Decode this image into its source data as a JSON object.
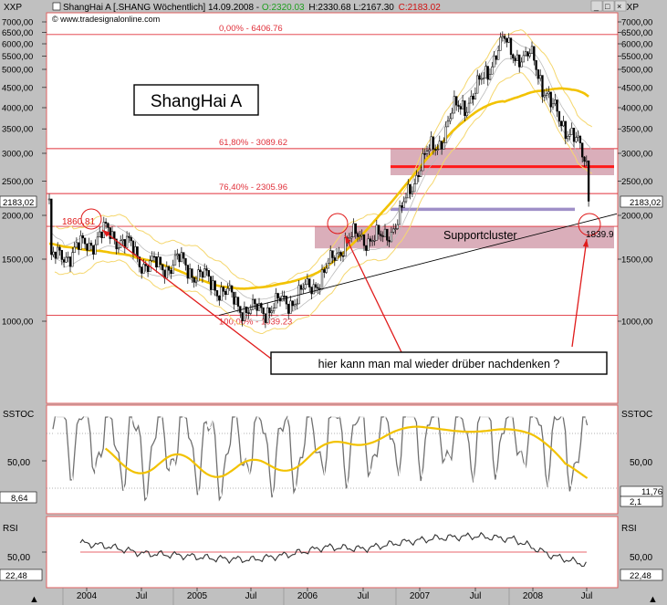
{
  "header": {
    "symbol_left": "XXP",
    "symbol_right": "XXP",
    "title": "ShangHai A [.SHANG  Wöchentlich] 14.09.2008 -",
    "open": "O:2320.03",
    "high_low": "H:2330.68 L:2167.30",
    "close": "C:2183.02",
    "close_label": "2183,02",
    "copyright": "© www.tradesignalonline.com",
    "window_buttons": [
      "_",
      "□",
      "×"
    ]
  },
  "price_panel": {
    "chart_title": "ShangHai A",
    "y_ticks_left": [
      "7000,00",
      "6500,00",
      "6000,00",
      "5500,00",
      "5000,00",
      "4500,00",
      "4000,00",
      "3500,00",
      "3000,00",
      "2500,00",
      "2000,00",
      "1500,00",
      "1000,00"
    ],
    "y_ticks_right": [
      "7000,00",
      "6500,00",
      "6000,00",
      "5500,00",
      "5000,00",
      "4500,00",
      "4000,00",
      "3500,00",
      "3000,00",
      "2500,00",
      "2000,00",
      "1500,00",
      "1000,00"
    ],
    "y_values": [
      7000,
      6500,
      6000,
      5500,
      5000,
      4500,
      4000,
      3500,
      3000,
      2500,
      2000,
      1500,
      1000
    ],
    "fib_levels": [
      {
        "label": "0,00% - 6406.76",
        "value": 6406.76
      },
      {
        "label": "61,80% - 3089.62",
        "value": 3089.62
      },
      {
        "label": "76,40% - 2305.96",
        "value": 2305.96
      },
      {
        "label": "100,00% - 1039.23",
        "value": 1039.23
      }
    ],
    "support_line_value": 1860.81,
    "resistance_value": 2750,
    "purple_line_value": 2080,
    "support_zone_top": 1860.81,
    "support_zone_bottom": 1610,
    "upper_zone_top": 3089.62,
    "upper_zone_bottom": 2600,
    "labels": {
      "high_2004": "1860.81",
      "low_target": "1839.9",
      "supportcluster": "Supportcluster",
      "comment": "hier kann man mal wieder drüber nachdenken ?"
    },
    "trendline": {
      "start_value": 1039.23,
      "end_value": 1880
    }
  },
  "x_axis": {
    "labels": [
      "2004",
      "Jul",
      "2005",
      "Jul",
      "2006",
      "Jul",
      "2007",
      "Jul",
      "2008",
      "Jul"
    ]
  },
  "stoch_panel": {
    "name": "SSTOC",
    "y_ticks_left": [
      "50,00"
    ],
    "y_ticks_right": [
      "50,00"
    ],
    "left_value": "8,64",
    "right_values": [
      "11,76",
      "2,1"
    ],
    "levels": [
      80,
      20
    ]
  },
  "rsi_panel": {
    "name": "RSI",
    "y_ticks_left": [
      "50,00"
    ],
    "y_ticks_right": [
      "50,00"
    ],
    "left_value": "22,48",
    "right_value": "22,48",
    "level": 50
  },
  "colors": {
    "background": "#ffffff",
    "frame": "#c0c0c0",
    "fib_line": "#e0303a",
    "zone": "#d4a0ae",
    "resistance": "#ff1a1a",
    "purple": "#9f8fc8",
    "ma_yellow": "#f2c200",
    "band_yellow": "#f5d76e",
    "band_white": "#ffffff",
    "stoch_grey": "#707070",
    "rsi_line": "#333333",
    "arrow": "#e01b1b",
    "comment_border": "#000000"
  },
  "chart_data": [
    {
      "type": "line",
      "title": "ShangHai A",
      "x": [
        "2003-11",
        "2004-01",
        "2004-03",
        "2004-05",
        "2004-07",
        "2004-09",
        "2004-11",
        "2005-01",
        "2005-03",
        "2005-05",
        "2005-07",
        "2005-09",
        "2005-11",
        "2006-01",
        "2006-03",
        "2006-05",
        "2006-07",
        "2006-09",
        "2006-11",
        "2007-01",
        "2007-03",
        "2007-05",
        "2007-07",
        "2007-09",
        "2007-10",
        "2007-12",
        "2008-01",
        "2008-03",
        "2008-05",
        "2008-07",
        "2008-09"
      ],
      "series": [
        {
          "values": [
            1480,
            1650,
            1790,
            1700,
            1480,
            1420,
            1480,
            1360,
            1270,
            1150,
            1060,
            1100,
            1140,
            1230,
            1380,
            1700,
            1740,
            1700,
            2000,
            2800,
            3200,
            4000,
            4300,
            5500,
            6100,
            5300,
            5500,
            4000,
            3500,
            2800,
            2183
          ]
        }
      ],
      "ylim": [
        900,
        7000
      ]
    },
    {
      "type": "line",
      "title": "SSTOC",
      "x": [
        "2003-11",
        "2004-03",
        "2004-07",
        "2004-11",
        "2005-03",
        "2005-07",
        "2005-11",
        "2006-03",
        "2006-07",
        "2006-11",
        "2007-03",
        "2007-07",
        "2007-11",
        "2008-03",
        "2008-07",
        "2008-09"
      ],
      "series": [
        {
          "values": [
            88,
            70,
            20,
            75,
            15,
            65,
            25,
            80,
            60,
            90,
            85,
            80,
            88,
            70,
            15,
            11.76
          ]
        }
      ],
      "ylim": [
        0,
        100
      ]
    },
    {
      "type": "line",
      "title": "RSI",
      "x": [
        "2003-11",
        "2004-03",
        "2004-07",
        "2004-11",
        "2005-03",
        "2005-07",
        "2005-11",
        "2006-03",
        "2006-07",
        "2006-11",
        "2007-03",
        "2007-07",
        "2007-11",
        "2008-03",
        "2008-07",
        "2008-09"
      ],
      "series": [
        {
          "values": [
            70,
            60,
            48,
            45,
            40,
            38,
            46,
            58,
            55,
            65,
            72,
            75,
            70,
            45,
            30,
            22.48
          ]
        }
      ],
      "ylim": [
        0,
        100
      ]
    }
  ]
}
